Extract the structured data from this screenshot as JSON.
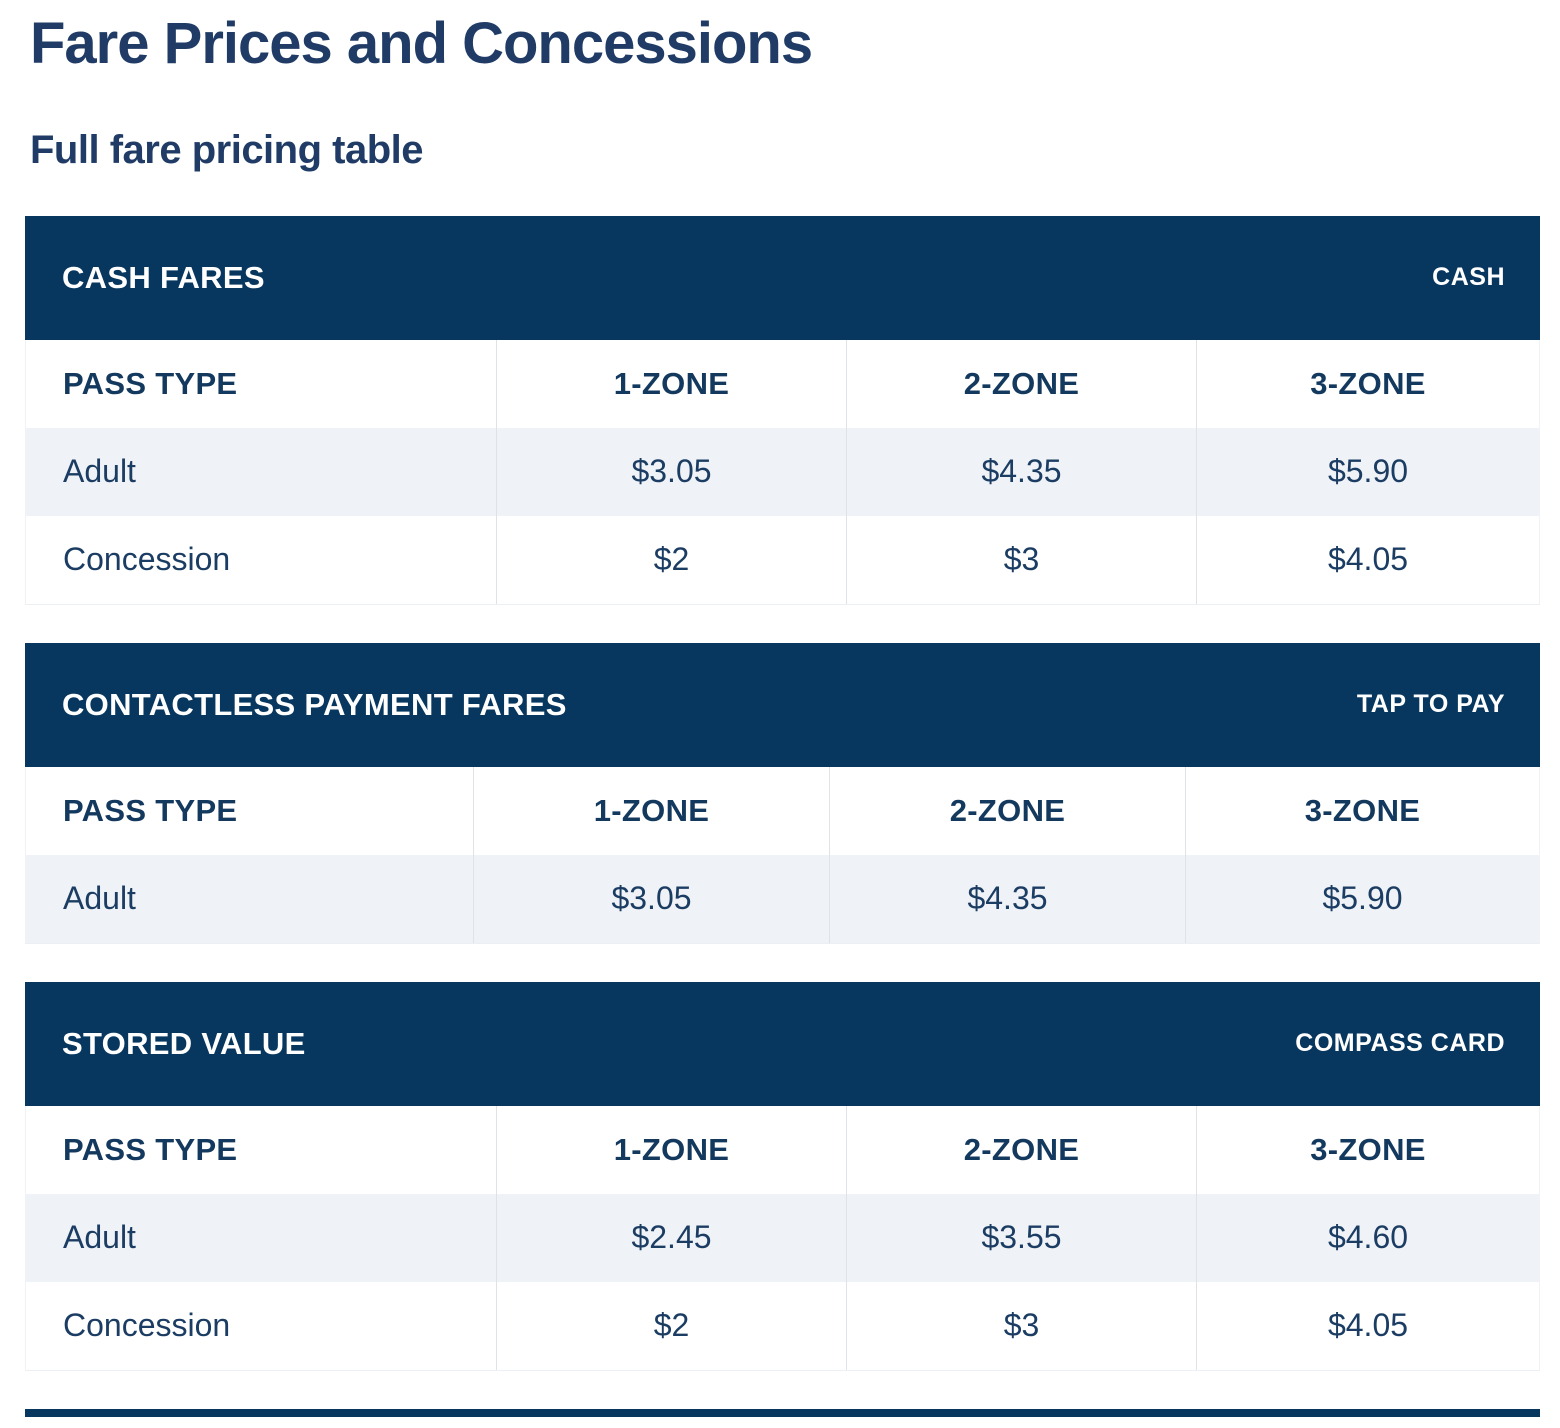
{
  "page": {
    "title": "Fare Prices and Concessions",
    "subtitle": "Full fare pricing table"
  },
  "colors": {
    "header_bar": "#07365E",
    "heading_text": "#203C66",
    "cell_text": "#1C3D63",
    "header_cell_text": "#14395E",
    "row_alt_bg": "#EFF2F6",
    "divider": "#DFE3E8"
  },
  "tables": [
    {
      "title": "CASH FARES",
      "badge": "CASH",
      "columns": [
        "PASS TYPE",
        "1-ZONE",
        "2-ZONE",
        "3-ZONE"
      ],
      "rows": [
        {
          "label": "Adult",
          "values": [
            "$3.05",
            "$4.35",
            "$5.90"
          ]
        },
        {
          "label": "Concession",
          "values": [
            "$2",
            "$3",
            "$4.05"
          ]
        }
      ]
    },
    {
      "title": "CONTACTLESS PAYMENT FARES",
      "badge": "TAP TO PAY",
      "columns": [
        "PASS TYPE",
        "1-ZONE",
        "2-ZONE",
        "3-ZONE"
      ],
      "rows": [
        {
          "label": "Adult",
          "values": [
            "$3.05",
            "$4.35",
            "$5.90"
          ]
        }
      ]
    },
    {
      "title": "STORED VALUE",
      "badge": "COMPASS CARD",
      "columns": [
        "PASS TYPE",
        "1-ZONE",
        "2-ZONE",
        "3-ZONE"
      ],
      "rows": [
        {
          "label": "Adult",
          "values": [
            "$2.45",
            "$3.55",
            "$4.60"
          ]
        },
        {
          "label": "Concession",
          "values": [
            "$2",
            "$3",
            "$4.05"
          ]
        }
      ]
    }
  ]
}
